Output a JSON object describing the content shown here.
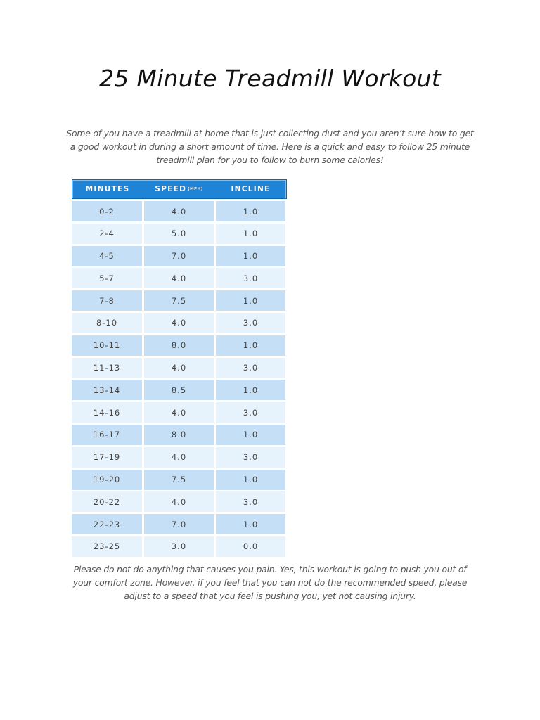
{
  "title": "25 Minute Treadmill Workout",
  "intro": "Some of you have a treadmill at home that is just collecting dust and you aren’t sure how to get a good workout in during a short amount of time. Here is a quick and easy to follow 25 minute treadmill plan for you to follow to burn some calories!",
  "table": {
    "headers": {
      "minutes": "MINUTES",
      "speed": "SPEED",
      "speed_unit": "(MPH)",
      "incline": "INCLINE"
    },
    "colors": {
      "header_bg": "#1f84d6",
      "row_dark": "#c5e0f6",
      "row_light": "#e6f2fc"
    },
    "rows": [
      {
        "minutes": "0-2",
        "speed": "4.0",
        "incline": "1.0"
      },
      {
        "minutes": "2-4",
        "speed": "5.0",
        "incline": "1.0"
      },
      {
        "minutes": "4-5",
        "speed": "7.0",
        "incline": "1.0"
      },
      {
        "minutes": "5-7",
        "speed": "4.0",
        "incline": "3.0"
      },
      {
        "minutes": "7-8",
        "speed": "7.5",
        "incline": "1.0"
      },
      {
        "minutes": "8-10",
        "speed": "4.0",
        "incline": "3.0"
      },
      {
        "minutes": "10-11",
        "speed": "8.0",
        "incline": "1.0"
      },
      {
        "minutes": "11-13",
        "speed": "4.0",
        "incline": "3.0"
      },
      {
        "minutes": "13-14",
        "speed": "8.5",
        "incline": "1.0"
      },
      {
        "minutes": "14-16",
        "speed": "4.0",
        "incline": "3.0"
      },
      {
        "minutes": "16-17",
        "speed": "8.0",
        "incline": "1.0"
      },
      {
        "minutes": "17-19",
        "speed": "4.0",
        "incline": "3.0"
      },
      {
        "minutes": "19-20",
        "speed": "7.5",
        "incline": "1.0"
      },
      {
        "minutes": "20-22",
        "speed": "4.0",
        "incline": "3.0"
      },
      {
        "minutes": "22-23",
        "speed": "7.0",
        "incline": "1.0"
      },
      {
        "minutes": "23-25",
        "speed": "3.0",
        "incline": "0.0"
      }
    ]
  },
  "outro": "Please do not do anything that causes you pain. Yes, this workout is going to push you out of your comfort zone. However, if you feel that you can not do the recommended speed, please adjust to a speed that you feel is pushing you, yet not causing injury."
}
